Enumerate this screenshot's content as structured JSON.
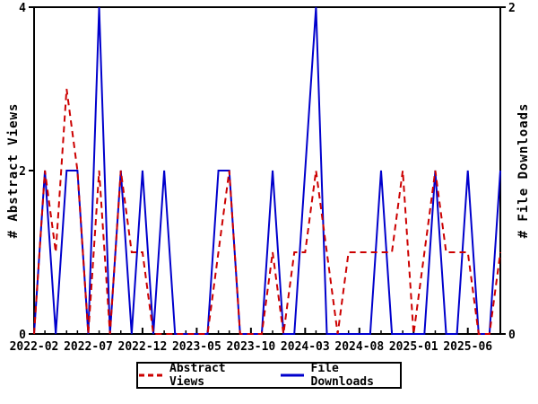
{
  "chart_data": {
    "type": "line",
    "x": [
      "2022-02",
      "2022-03",
      "2022-04",
      "2022-05",
      "2022-06",
      "2022-07",
      "2022-08",
      "2022-09",
      "2022-10",
      "2022-11",
      "2022-12",
      "2023-01",
      "2023-02",
      "2023-03",
      "2023-04",
      "2023-05",
      "2023-06",
      "2023-07",
      "2023-08",
      "2023-09",
      "2023-10",
      "2023-11",
      "2023-12",
      "2024-01",
      "2024-02",
      "2024-03",
      "2024-04",
      "2024-05",
      "2024-06",
      "2024-07",
      "2024-08",
      "2024-09",
      "2024-10",
      "2024-11",
      "2024-12",
      "2025-01",
      "2025-02",
      "2025-03",
      "2025-04",
      "2025-05",
      "2025-06",
      "2025-07",
      "2025-08",
      "2025-09"
    ],
    "xtick_indices": [
      0,
      5,
      10,
      15,
      20,
      25,
      30,
      35,
      40
    ],
    "xtick_labels": [
      "2022-02",
      "2022-07",
      "2022-12",
      "2023-05",
      "2023-10",
      "2024-03",
      "2024-08",
      "2025-01",
      "2025-06"
    ],
    "series": [
      {
        "name": "File Downloads",
        "axis": "right",
        "color": "#0000cc",
        "dash": false,
        "values": [
          0,
          1,
          0,
          1,
          1,
          0,
          2,
          0,
          1,
          0,
          1,
          0,
          1,
          0,
          0,
          0,
          0,
          1,
          1,
          0,
          0,
          0,
          1,
          0,
          0,
          1,
          2,
          0,
          0,
          0,
          0,
          0,
          1,
          0,
          0,
          0,
          0,
          1,
          0,
          0,
          1,
          0,
          0,
          1
        ]
      },
      {
        "name": "Abstract Views",
        "axis": "left",
        "color": "#cc0000",
        "dash": true,
        "values": [
          0,
          2,
          1,
          3,
          2,
          0,
          2,
          0,
          2,
          1,
          1,
          0,
          0,
          0,
          0,
          0,
          0,
          1,
          2,
          0,
          0,
          0,
          1,
          0,
          1,
          1,
          2,
          1,
          0,
          1,
          1,
          1,
          1,
          1,
          2,
          0,
          1,
          2,
          1,
          1,
          1,
          0,
          0,
          1
        ]
      }
    ],
    "ylabel_left": "# Abstract Views",
    "ylabel_right": "# File Downloads",
    "ylim_left": [
      0,
      4
    ],
    "ylim_right": [
      0,
      2
    ],
    "yticks_left": [
      "0",
      "2",
      "4"
    ],
    "yticks_right": [
      "0",
      "2"
    ],
    "grid": false,
    "legend_position": "bottom-center",
    "axis_color": "#000000",
    "background_color": "#ffffff"
  },
  "legend": {
    "items": [
      {
        "label": "Abstract Views",
        "color": "#cc0000",
        "style": "dashed"
      },
      {
        "label": "File Downloads",
        "color": "#0000cc",
        "style": "solid"
      }
    ]
  }
}
